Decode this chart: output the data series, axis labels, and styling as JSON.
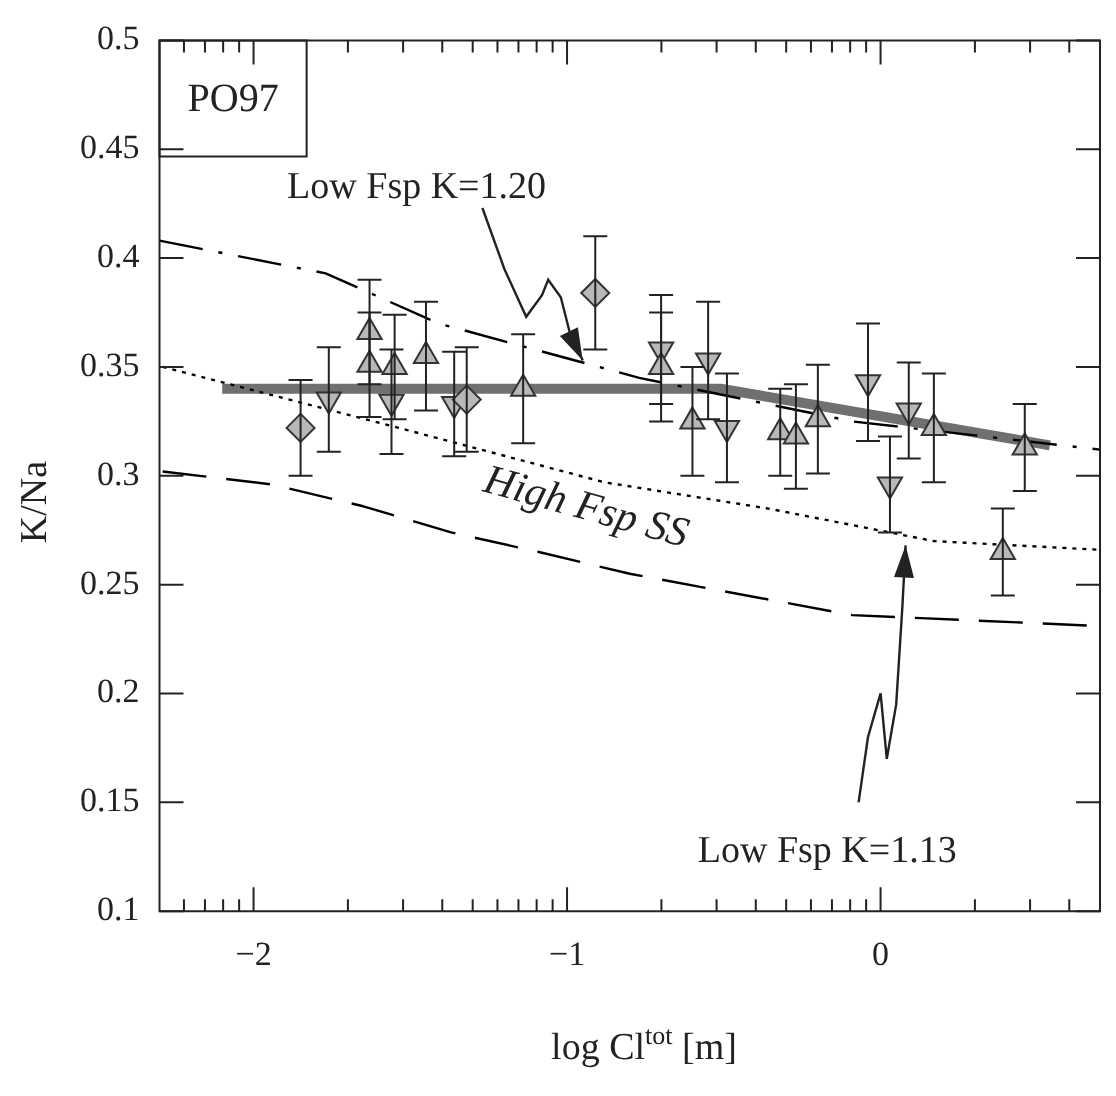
{
  "chart_data": {
    "type": "scatter",
    "xlabel": "log Cl$^{tot}$ [m]",
    "ylabel": "K/Na",
    "xlim": [
      -2.3,
      0.7
    ],
    "ylim": [
      0.1,
      0.5
    ],
    "xticks": [
      {
        "value": -2.222,
        "label": null
      },
      {
        "value": -2.155,
        "label": null
      },
      {
        "value": -2.097,
        "label": null
      },
      {
        "value": -2.046,
        "label": null
      },
      {
        "value": -2,
        "label": "−2"
      },
      {
        "value": -1.699,
        "label": null
      },
      {
        "value": -1.523,
        "label": null
      },
      {
        "value": -1.398,
        "label": null
      },
      {
        "value": -1.301,
        "label": null
      },
      {
        "value": -1.222,
        "label": null
      },
      {
        "value": -1.155,
        "label": null
      },
      {
        "value": -1.097,
        "label": null
      },
      {
        "value": -1.046,
        "label": null
      },
      {
        "value": -1,
        "label": "−1"
      },
      {
        "value": -0.699,
        "label": null
      },
      {
        "value": -0.523,
        "label": null
      },
      {
        "value": -0.398,
        "label": null
      },
      {
        "value": -0.301,
        "label": null
      },
      {
        "value": -0.222,
        "label": null
      },
      {
        "value": -0.155,
        "label": null
      },
      {
        "value": -0.097,
        "label": null
      },
      {
        "value": -0.046,
        "label": null
      },
      0,
      {
        "value": 0.301,
        "label": null
      },
      {
        "value": 0.477,
        "label": null
      },
      {
        "value": 0.602,
        "label": null
      }
    ],
    "yticks": [
      0.1,
      0.15,
      0.2,
      0.25,
      0.3,
      0.35,
      0.4,
      0.45,
      0.5
    ],
    "grid": false,
    "legend": false,
    "annotations": [
      "PO97",
      {
        "text": "Low Fsp K=1.20",
        "x": -0.95,
        "y": 0.353
      },
      "High Fsp SS",
      {
        "text": "Low Fsp K=1.13",
        "x": 0.08,
        "y": 0.268
      }
    ],
    "series": [
      {
        "type": "line",
        "color": "#000000",
        "line_style": "dash-dot",
        "marker": "none",
        "x": [
          -2.3,
          -1.77,
          -1.41,
          -0.77,
          -0.09,
          0.64,
          0.7
        ],
        "values": [
          0.408,
          0.393,
          0.37,
          0.345,
          0.325,
          0.313,
          0.312
        ]
      },
      {
        "type": "line",
        "color": "#000000",
        "line_style": "dotted",
        "marker": "none",
        "x": [
          -2.29,
          -1.51,
          -0.88,
          -0.36,
          0.17,
          0.7
        ],
        "values": [
          0.35,
          0.321,
          0.297,
          0.285,
          0.27,
          0.266
        ]
      },
      {
        "type": "line",
        "color": "#000000",
        "line_style": "dashed",
        "marker": "none",
        "x": [
          -2.29,
          -1.94,
          -1.65,
          -1.37,
          -1.09,
          -0.8,
          -0.09,
          0.7
        ],
        "values": [
          0.302,
          0.296,
          0.286,
          0.274,
          0.265,
          0.255,
          0.236,
          0.231
        ]
      },
      {
        "type": "line",
        "color": "#707070",
        "line_style": "solid",
        "marker": "none",
        "x": [
          -2.1,
          -0.51,
          0.54
        ],
        "values": [
          0.34,
          0.34,
          0.314
        ]
      },
      {
        "color": "#b8b8b8",
        "marker": "diamond",
        "x": [
          -1.85,
          -1.32,
          -0.91
        ],
        "values": [
          0.322,
          0.335,
          0.384
        ],
        "errors": [
          0.022,
          0.024,
          0.026
        ]
      },
      {
        "color": "#b8b8b8",
        "marker": "triangle",
        "x": [
          -1.63,
          -1.63,
          -1.55,
          -1.45,
          -1.14,
          -0.7,
          -0.6,
          -0.32,
          -0.27,
          -0.2,
          0.17,
          0.46,
          0.39
        ],
        "values": [
          0.366,
          0.351,
          0.35,
          0.355,
          0.34,
          0.35,
          0.325,
          0.32,
          0.318,
          0.326,
          0.322,
          0.313,
          0.265
        ],
        "errors": [
          0.024,
          0.024,
          0.024,
          0.025,
          0.025,
          0.025,
          0.025,
          0.02,
          0.024,
          0.025,
          0.025,
          0.02,
          0.02
        ]
      },
      {
        "color": "#b8b8b8",
        "marker": "triangle-down",
        "x": [
          -1.76,
          -1.56,
          -1.36,
          -0.7,
          -0.55,
          -0.49,
          -0.04,
          0.03,
          0.09
        ],
        "values": [
          0.335,
          0.334,
          0.333,
          0.358,
          0.353,
          0.322,
          0.343,
          0.296,
          0.33
        ],
        "errors": [
          0.024,
          0.024,
          0.024,
          0.025,
          0.027,
          0.025,
          0.027,
          0.022,
          0.022
        ]
      }
    ]
  }
}
